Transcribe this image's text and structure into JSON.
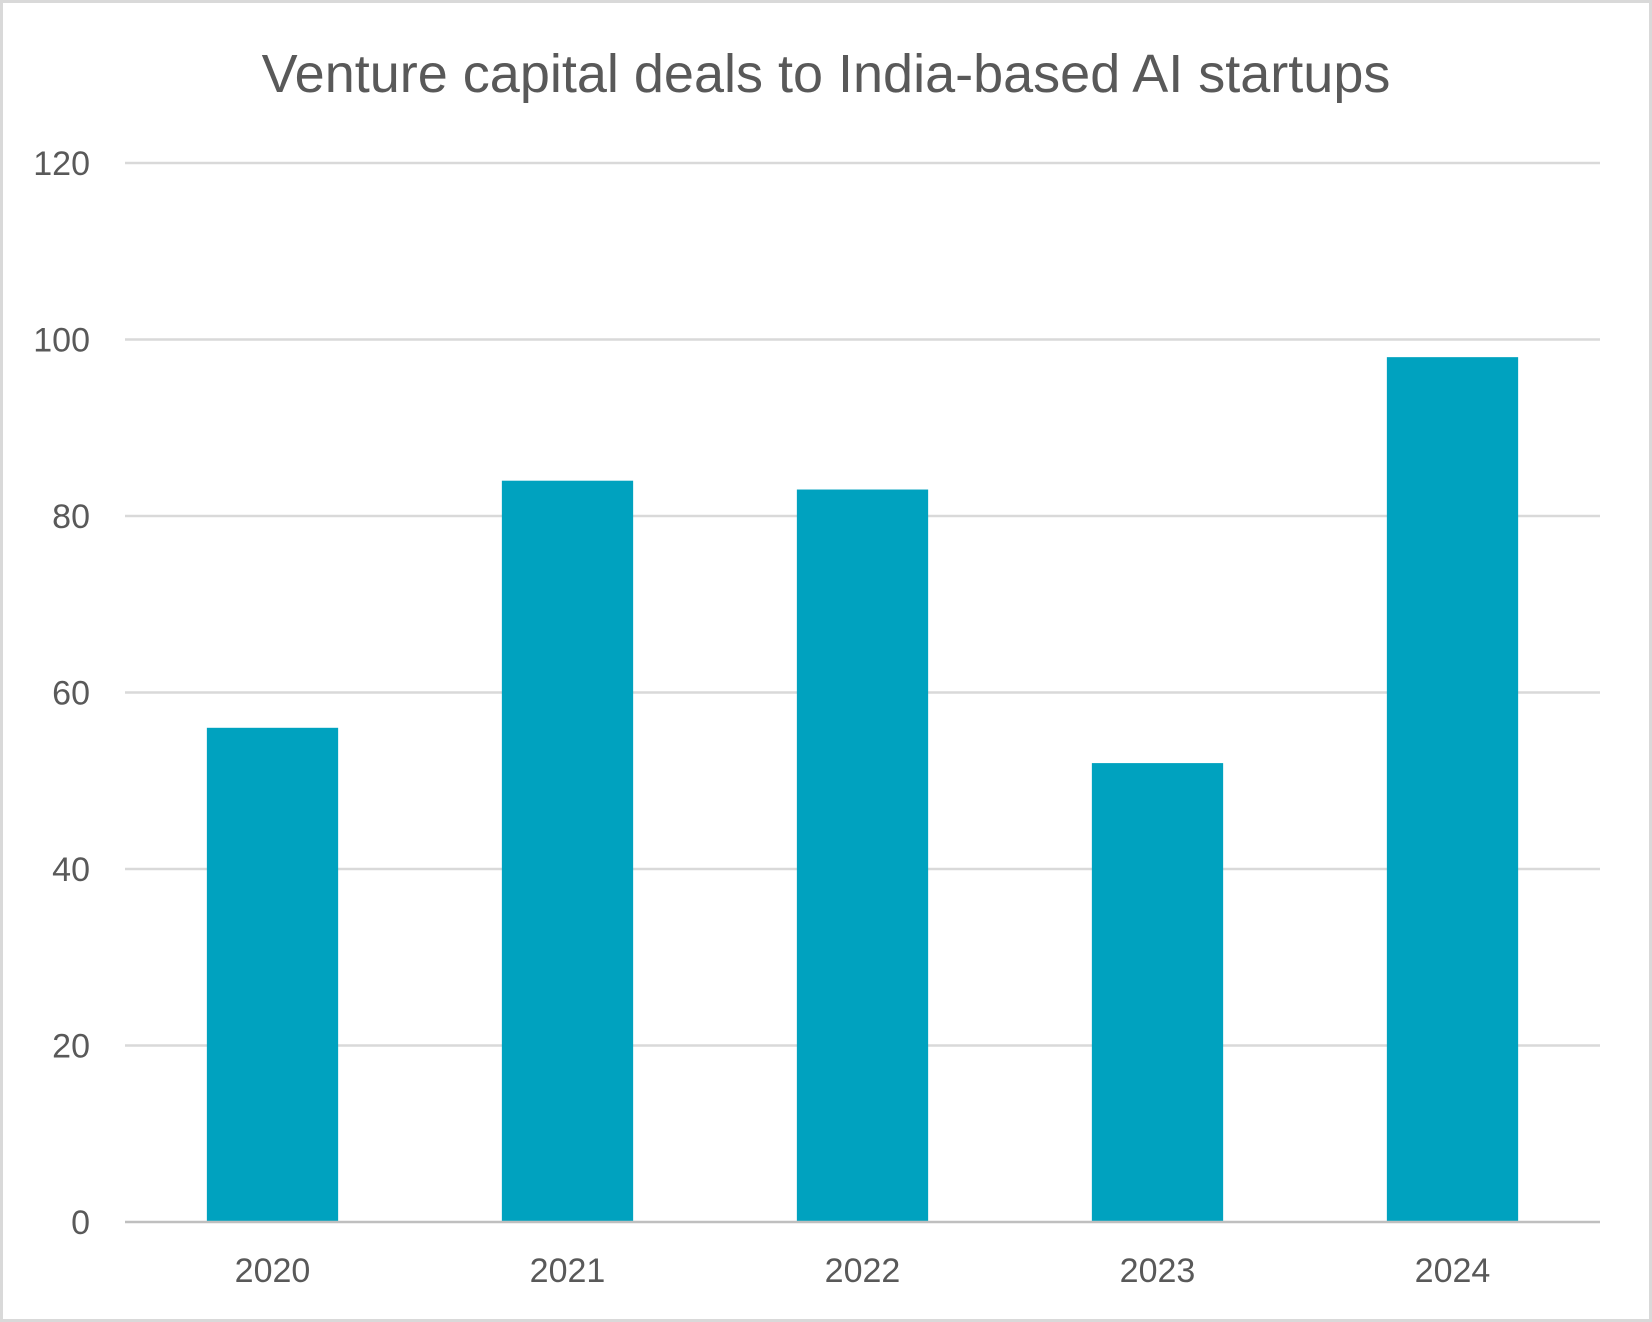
{
  "chart_data": {
    "type": "bar",
    "title": "Venture capital deals to India-based AI startups",
    "categories": [
      "2020",
      "2021",
      "2022",
      "2023",
      "2024"
    ],
    "values": [
      56,
      84,
      83,
      52,
      98
    ],
    "xlabel": "",
    "ylabel": "",
    "ylim": [
      0,
      120
    ],
    "yticks": [
      0,
      20,
      40,
      60,
      80,
      100,
      120
    ],
    "grid": true,
    "legend": "none",
    "bar_color": "#00A2BF"
  }
}
